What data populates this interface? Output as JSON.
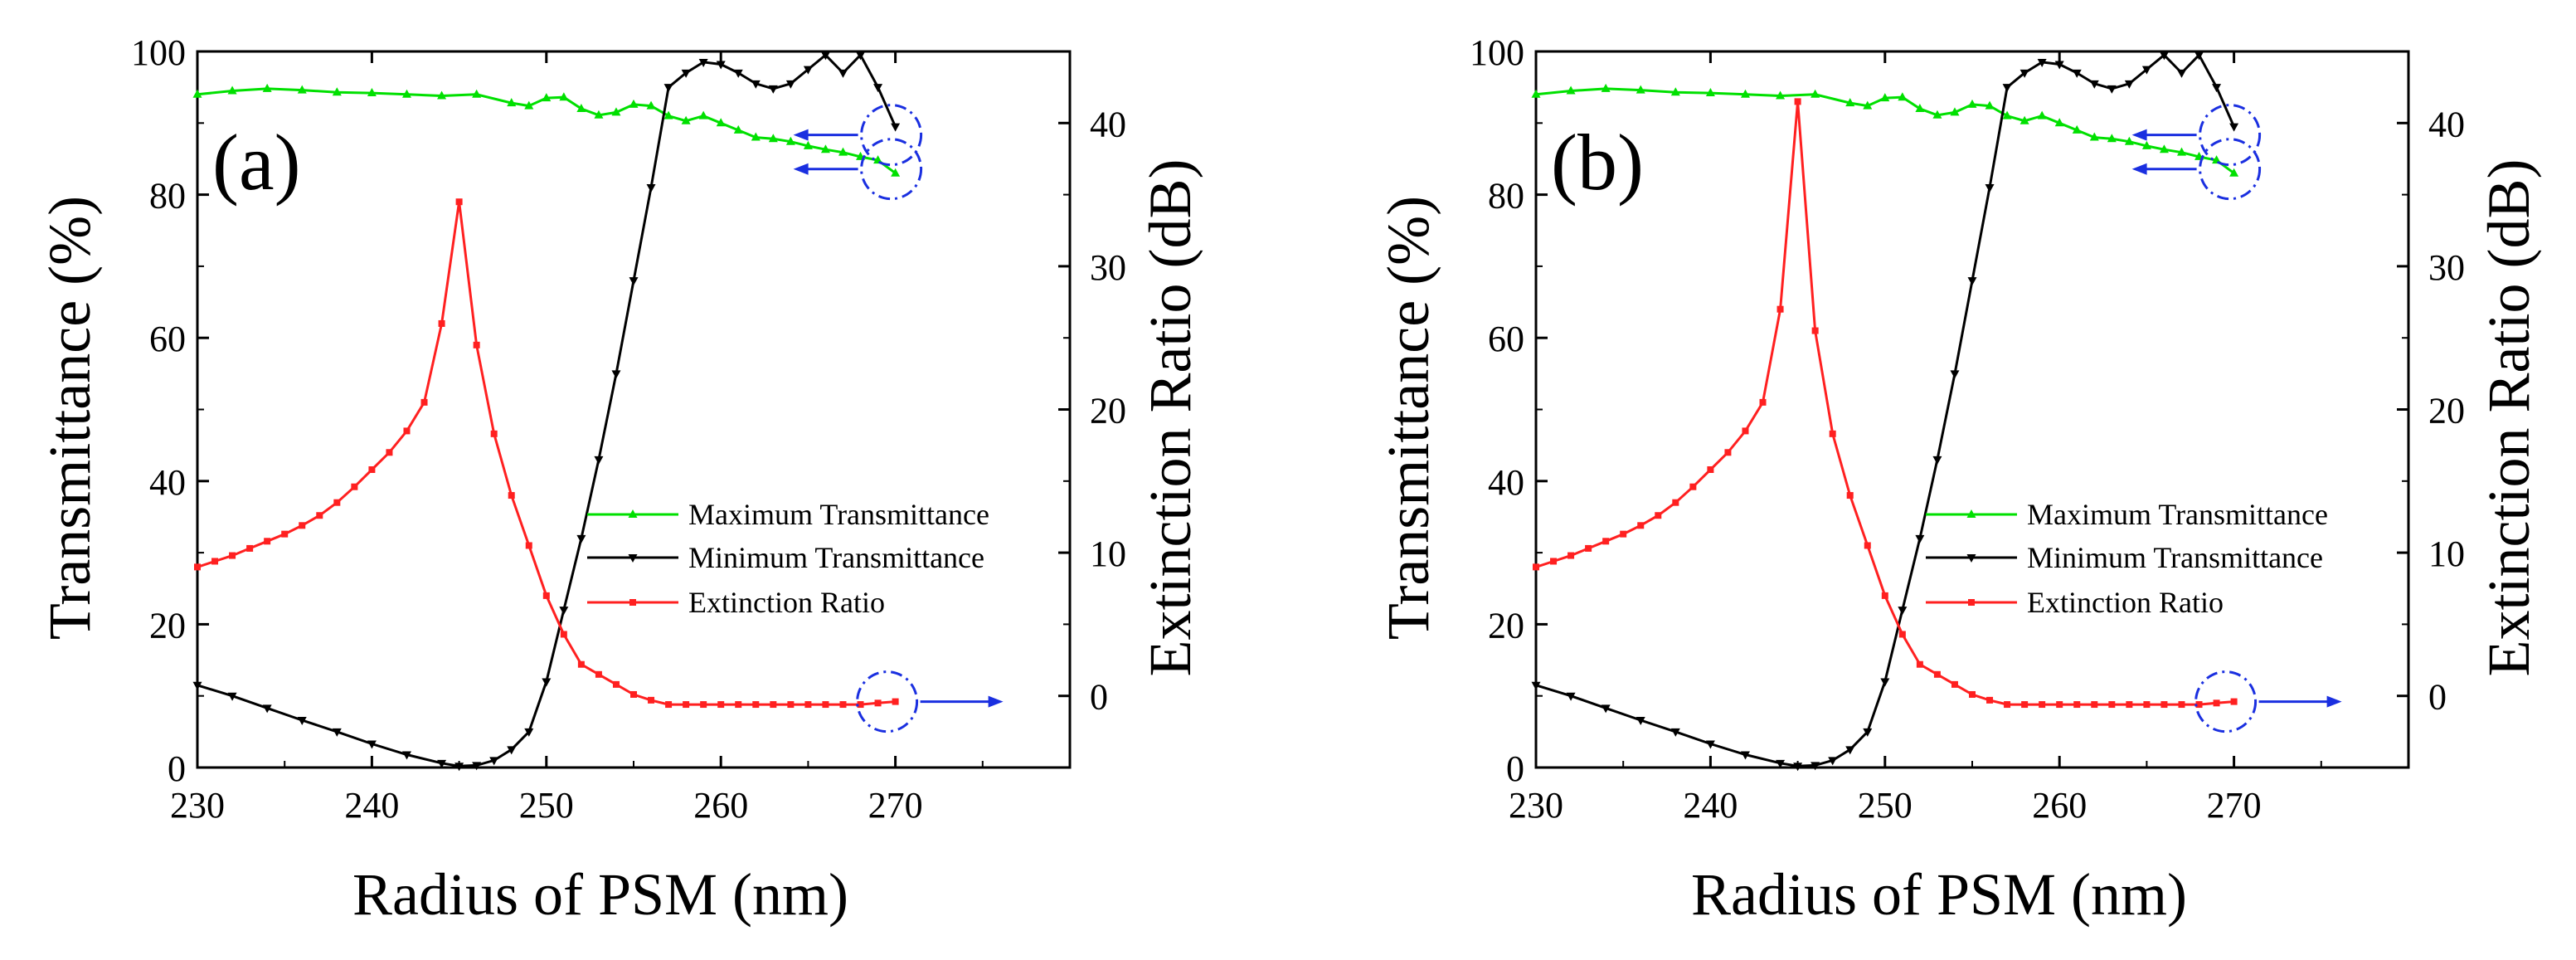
{
  "figure": {
    "panels": [
      "(a)",
      "(b)"
    ]
  },
  "colors": {
    "max": "#00e000",
    "min": "#000000",
    "er": "#ff2020",
    "annotation": "#1a2fe0"
  },
  "chart_data": [
    {
      "type": "line",
      "panel_label": "(a)",
      "xlabel": "Radius of PSM (nm)",
      "ylabel": "Transmittance (%)",
      "y2label": "Extinction Ratio (dB)",
      "xlim": [
        230,
        280
      ],
      "ylim": [
        0,
        100
      ],
      "y2lim": [
        -5,
        45
      ],
      "xticks": [
        "230",
        "240",
        "250",
        "260",
        "270"
      ],
      "yticks": [
        "0",
        "20",
        "40",
        "60",
        "80",
        "100"
      ],
      "y2ticks": [
        "0",
        "10",
        "20",
        "30",
        "40"
      ],
      "legend": [
        "Maximum Transmittance",
        "Minimum Transmittance",
        "Extinction Ratio"
      ],
      "series": [
        {
          "name": "Maximum Transmittance",
          "axis": "left",
          "marker": "triangle-up",
          "x": [
            230,
            232,
            234,
            236,
            238,
            240,
            242,
            244,
            246,
            248,
            249,
            250,
            251,
            252,
            253,
            254,
            255,
            256,
            257,
            258,
            259,
            260,
            261,
            262,
            263,
            264,
            265,
            266,
            267,
            268,
            269,
            270
          ],
          "y": [
            94.0,
            94.5,
            94.8,
            94.6,
            94.3,
            94.2,
            94.0,
            93.8,
            94.0,
            92.8,
            92.4,
            93.5,
            93.6,
            92.0,
            91.1,
            91.5,
            92.6,
            92.4,
            91.0,
            90.3,
            91.0,
            90.0,
            89.0,
            88.0,
            87.8,
            87.4,
            86.8,
            86.3,
            85.9,
            85.3,
            84.8,
            83.0
          ]
        },
        {
          "name": "Minimum Transmittance",
          "axis": "left",
          "marker": "triangle-down",
          "x": [
            230,
            232,
            234,
            236,
            238,
            240,
            242,
            244,
            245,
            246,
            247,
            248,
            249,
            250,
            251,
            252,
            253,
            254,
            255,
            256,
            257,
            258,
            259,
            260,
            261,
            262,
            263,
            264,
            265,
            266,
            267,
            268,
            269,
            270
          ],
          "y": [
            11.5,
            10.0,
            8.3,
            6.6,
            5.0,
            3.3,
            1.8,
            0.6,
            0.2,
            0.3,
            1.0,
            2.5,
            5.0,
            12.0,
            22.0,
            32.0,
            43.0,
            55.0,
            68.0,
            81.0,
            95.0,
            97.0,
            98.5,
            98.2,
            97.0,
            95.5,
            94.8,
            95.5,
            97.5,
            99.5,
            97.0,
            99.5,
            95.0,
            89.5
          ]
        },
        {
          "name": "Extinction Ratio",
          "axis": "right",
          "marker": "square",
          "x": [
            230,
            231,
            232,
            233,
            234,
            235,
            236,
            237,
            238,
            239,
            240,
            241,
            242,
            243,
            244,
            245,
            246,
            247,
            248,
            249,
            250,
            251,
            252,
            253,
            254,
            255,
            256,
            257,
            258,
            259,
            260,
            261,
            262,
            263,
            264,
            265,
            266,
            267,
            268,
            269,
            270
          ],
          "y": [
            9.0,
            9.4,
            9.8,
            10.3,
            10.8,
            11.3,
            11.9,
            12.6,
            13.5,
            14.6,
            15.8,
            17.0,
            18.5,
            20.5,
            26.0,
            34.5,
            24.5,
            18.3,
            14.0,
            10.5,
            7.0,
            4.3,
            2.2,
            1.5,
            0.8,
            0.1,
            -0.3,
            -0.6,
            -0.6,
            -0.6,
            -0.6,
            -0.6,
            -0.6,
            -0.6,
            -0.6,
            -0.6,
            -0.6,
            -0.6,
            -0.6,
            -0.5,
            -0.4
          ]
        }
      ]
    },
    {
      "type": "line",
      "panel_label": "(b)",
      "xlabel": "Radius of PSM (nm)",
      "ylabel": "Transmittance (%)",
      "y2label": "Extinction Ratio (dB)",
      "xlim": [
        230,
        280
      ],
      "ylim": [
        0,
        100
      ],
      "y2lim": [
        -5,
        45
      ],
      "xticks": [
        "230",
        "240",
        "250",
        "260",
        "270"
      ],
      "yticks": [
        "0",
        "20",
        "40",
        "60",
        "80",
        "100"
      ],
      "y2ticks": [
        "0",
        "10",
        "20",
        "30",
        "40"
      ],
      "legend": [
        "Maximum Transmittance",
        "Minimum Transmittance",
        "Extinction Ratio"
      ],
      "series": [
        {
          "name": "Maximum Transmittance",
          "axis": "left",
          "marker": "triangle-up",
          "x": [
            230,
            232,
            234,
            236,
            238,
            240,
            242,
            244,
            246,
            248,
            249,
            250,
            251,
            252,
            253,
            254,
            255,
            256,
            257,
            258,
            259,
            260,
            261,
            262,
            263,
            264,
            265,
            266,
            267,
            268,
            269,
            270
          ],
          "y": [
            94.0,
            94.5,
            94.8,
            94.6,
            94.3,
            94.2,
            94.0,
            93.8,
            94.0,
            92.8,
            92.4,
            93.5,
            93.6,
            92.0,
            91.1,
            91.5,
            92.6,
            92.4,
            91.0,
            90.3,
            91.0,
            90.0,
            89.0,
            88.0,
            87.8,
            87.4,
            86.8,
            86.3,
            85.9,
            85.3,
            84.8,
            83.0
          ]
        },
        {
          "name": "Minimum Transmittance",
          "axis": "left",
          "marker": "triangle-down",
          "x": [
            230,
            232,
            234,
            236,
            238,
            240,
            242,
            244,
            245,
            246,
            247,
            248,
            249,
            250,
            251,
            252,
            253,
            254,
            255,
            256,
            257,
            258,
            259,
            260,
            261,
            262,
            263,
            264,
            265,
            266,
            267,
            268,
            269,
            270
          ],
          "y": [
            11.5,
            10.0,
            8.3,
            6.6,
            5.0,
            3.3,
            1.8,
            0.6,
            0.2,
            0.3,
            1.0,
            2.5,
            5.0,
            12.0,
            22.0,
            32.0,
            43.0,
            55.0,
            68.0,
            81.0,
            95.0,
            97.0,
            98.5,
            98.2,
            97.0,
            95.5,
            94.8,
            95.5,
            97.5,
            99.5,
            97.0,
            99.5,
            95.0,
            89.5
          ]
        },
        {
          "name": "Extinction Ratio",
          "axis": "right",
          "marker": "square",
          "x": [
            230,
            231,
            232,
            233,
            234,
            235,
            236,
            237,
            238,
            239,
            240,
            241,
            242,
            243,
            244,
            245,
            246,
            247,
            248,
            249,
            250,
            251,
            252,
            253,
            254,
            255,
            256,
            257,
            258,
            259,
            260,
            261,
            262,
            263,
            264,
            265,
            266,
            267,
            268,
            269,
            270
          ],
          "y": [
            9.0,
            9.4,
            9.8,
            10.3,
            10.8,
            11.3,
            11.9,
            12.6,
            13.5,
            14.6,
            15.8,
            17.0,
            18.5,
            20.5,
            27.0,
            41.5,
            25.5,
            18.3,
            14.0,
            10.5,
            7.0,
            4.3,
            2.2,
            1.5,
            0.8,
            0.1,
            -0.3,
            -0.6,
            -0.6,
            -0.6,
            -0.6,
            -0.6,
            -0.6,
            -0.6,
            -0.6,
            -0.6,
            -0.6,
            -0.6,
            -0.6,
            -0.5,
            -0.4
          ]
        }
      ]
    }
  ]
}
